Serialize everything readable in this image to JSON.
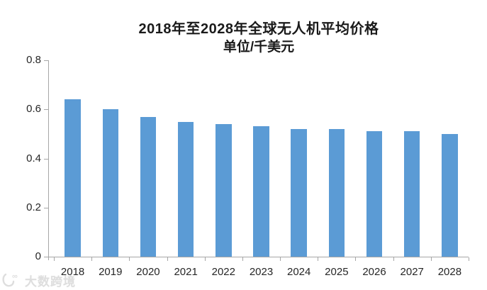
{
  "chart_data": {
    "type": "bar",
    "title": "2018年至2028年全球无人机平均价格",
    "subtitle": "单位/千美元",
    "categories": [
      "2018",
      "2019",
      "2020",
      "2021",
      "2022",
      "2023",
      "2024",
      "2025",
      "2026",
      "2027",
      "2028"
    ],
    "values": [
      0.64,
      0.6,
      0.57,
      0.55,
      0.54,
      0.53,
      0.52,
      0.52,
      0.51,
      0.51,
      0.5
    ],
    "ylim": [
      0,
      0.8
    ],
    "yticks": [
      0,
      0.2,
      0.4,
      0.6,
      0.8
    ],
    "ytick_labels": [
      "0",
      "0.2",
      "0.4",
      "0.6",
      "0.8"
    ],
    "xlabel": "",
    "ylabel": "",
    "grid": false,
    "legend_position": "none",
    "bar_color": "#5B9BD5",
    "axis_color": "#A6A6A6",
    "text_color": "#262626"
  },
  "watermark": {
    "text": "大数跨境",
    "icon": "brand-logo-icon",
    "color": "#c4c4c4"
  }
}
